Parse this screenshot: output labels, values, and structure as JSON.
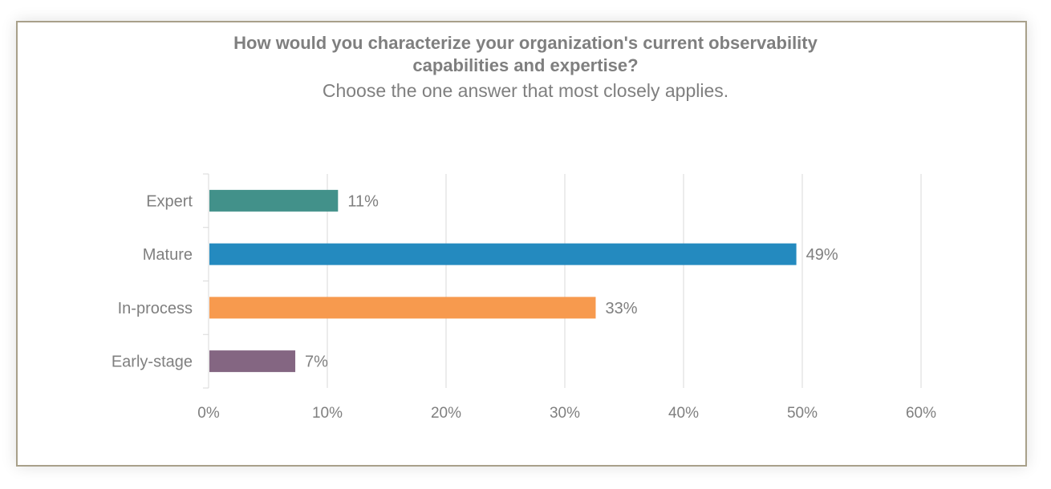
{
  "chart_data": {
    "type": "bar",
    "orientation": "horizontal",
    "title": "How would you characterize your organization's current observability capabilities and expertise?",
    "subtitle": "Choose the one answer that most closely applies.",
    "categories": [
      "Expert",
      "Mature",
      "In-process",
      "Early-stage"
    ],
    "values": [
      10.9,
      49.5,
      32.6,
      7.3
    ],
    "data_labels": [
      "11%",
      "49%",
      "33%",
      "7%"
    ],
    "colors": [
      "#42918a",
      "#248abf",
      "#f79a4e",
      "#846682"
    ],
    "xlim": [
      0,
      60
    ],
    "x_ticks": [
      "0%",
      "10%",
      "20%",
      "30%",
      "40%",
      "50%",
      "60%"
    ],
    "grid": "vertical",
    "legend": "none",
    "xlabel": "",
    "ylabel": ""
  }
}
